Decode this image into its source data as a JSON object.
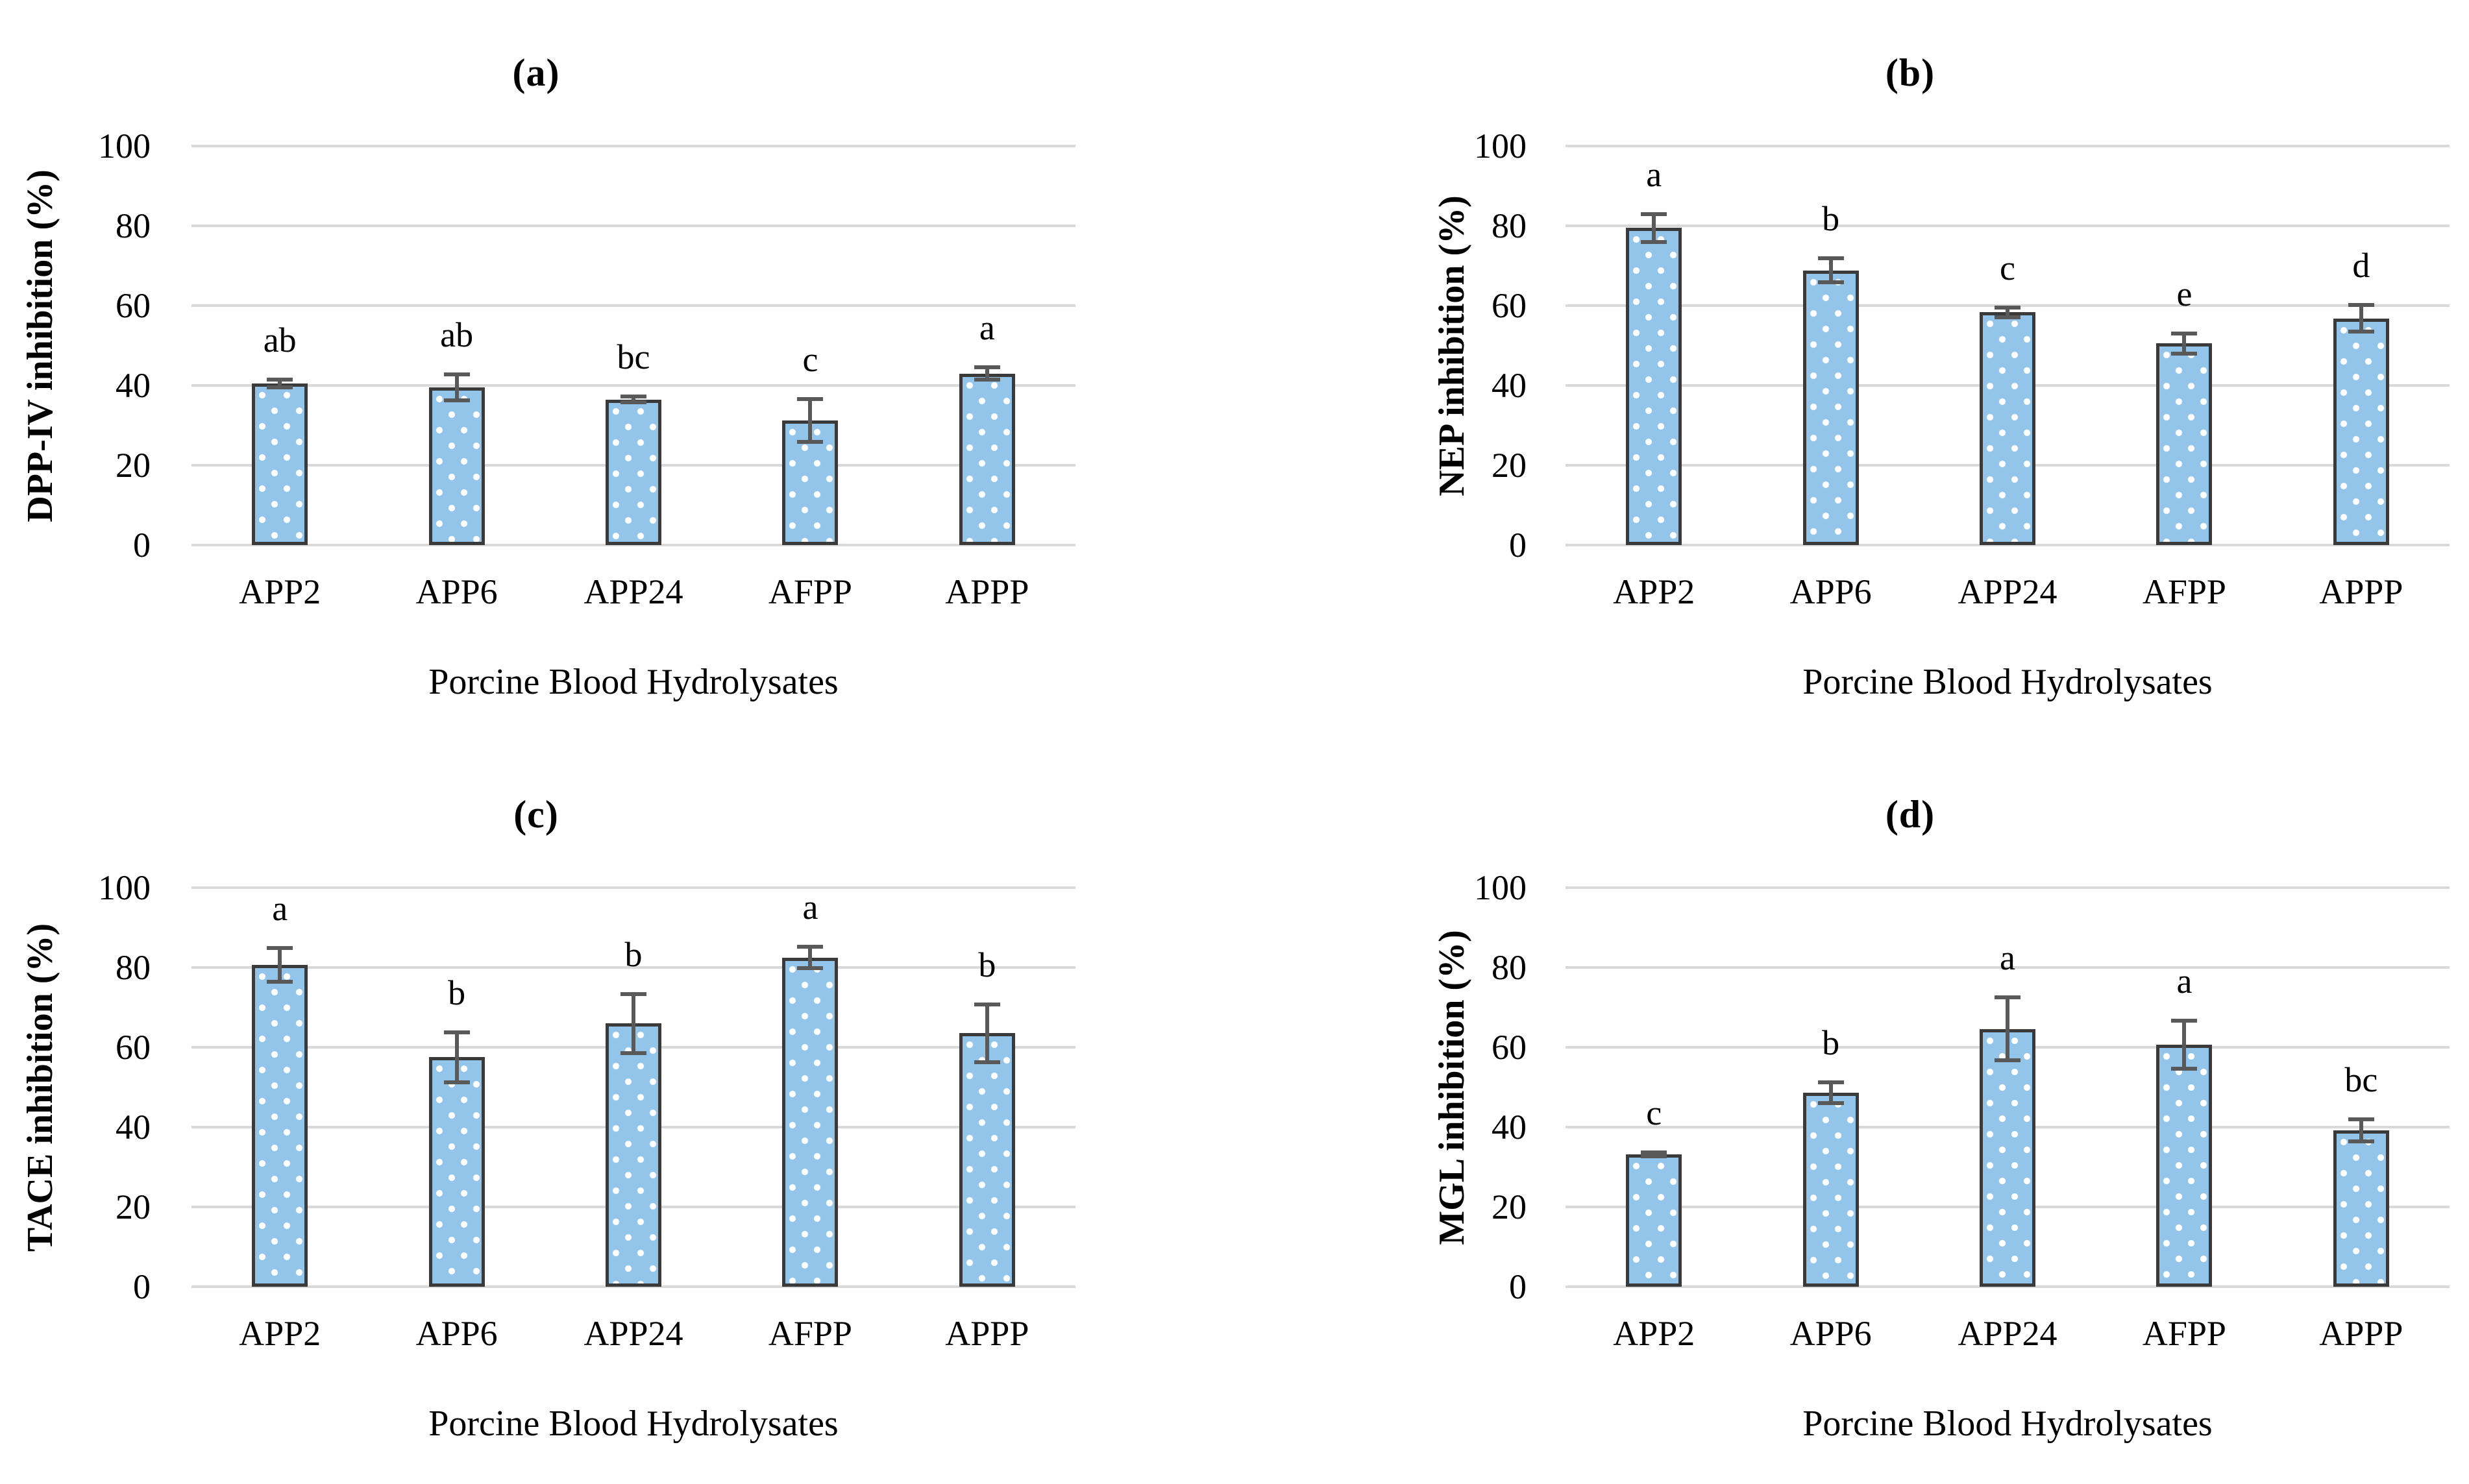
{
  "figure": {
    "background": "#FFFFFF"
  },
  "colors": {
    "bar_fill": "#92C5E9",
    "bar_dot": "#FFFFFF",
    "bar_border": "#3A3A3A",
    "error_bar": "#595959",
    "gridline": "#D9D9D9",
    "text": "#000000"
  },
  "chart_data": [
    {
      "type": "bar",
      "panel_label": "(a)",
      "ylabel": "DPP-IV inhibition (%)",
      "xlabel": "Porcine Blood Hydrolysates",
      "categories": [
        "APP2",
        "APP6",
        "APP24",
        "AFPP",
        "APPP"
      ],
      "values": [
        40.5,
        39.5,
        36.5,
        31.2,
        43.0
      ],
      "errors": [
        1.0,
        3.2,
        0.7,
        5.4,
        1.5
      ],
      "sig_letters": [
        "ab",
        "ab",
        "bc",
        "c",
        "a"
      ],
      "ylim": [
        0,
        100
      ],
      "yticks": [
        0,
        20,
        40,
        60,
        80,
        100
      ],
      "grid": "horizontal",
      "legend": "none"
    },
    {
      "type": "bar",
      "panel_label": "(b)",
      "ylabel": "NEP inhibition (%)",
      "xlabel": "Porcine Blood Hydrolysates",
      "categories": [
        "APP2",
        "APP6",
        "APP24",
        "AFPP",
        "APPP"
      ],
      "values": [
        79.5,
        68.8,
        58.3,
        50.5,
        56.8
      ],
      "errors": [
        3.5,
        3.0,
        1.2,
        2.5,
        3.3
      ],
      "sig_letters": [
        "a",
        "b",
        "c",
        "e",
        "d"
      ],
      "ylim": [
        0,
        100
      ],
      "yticks": [
        0,
        20,
        40,
        60,
        80,
        100
      ],
      "grid": "horizontal",
      "legend": "none"
    },
    {
      "type": "bar",
      "panel_label": "(c)",
      "ylabel": "TACE inhibition (%)",
      "xlabel": "Porcine Blood Hydrolysates",
      "categories": [
        "APP2",
        "APP6",
        "APP24",
        "AFPP",
        "APPP"
      ],
      "values": [
        80.7,
        57.5,
        66.0,
        82.5,
        63.5
      ],
      "errors": [
        4.2,
        6.3,
        7.4,
        2.7,
        7.3
      ],
      "sig_letters": [
        "a",
        "b",
        "b",
        "a",
        "b"
      ],
      "ylim": [
        0,
        100
      ],
      "yticks": [
        0,
        20,
        40,
        60,
        80,
        100
      ],
      "grid": "horizontal",
      "legend": "none"
    },
    {
      "type": "bar",
      "panel_label": "(d)",
      "ylabel": "MGL inhibition (%)",
      "xlabel": "Porcine Blood Hydrolysates",
      "categories": [
        "APP2",
        "APP6",
        "APP24",
        "AFPP",
        "APPP"
      ],
      "values": [
        33.2,
        48.6,
        64.6,
        60.6,
        39.2
      ],
      "errors": [
        0.5,
        2.6,
        7.9,
        6.0,
        2.8
      ],
      "sig_letters": [
        "c",
        "b",
        "a",
        "a",
        "bc"
      ],
      "ylim": [
        0,
        100
      ],
      "yticks": [
        0,
        20,
        40,
        60,
        80,
        100
      ],
      "grid": "horizontal",
      "legend": "none"
    }
  ]
}
